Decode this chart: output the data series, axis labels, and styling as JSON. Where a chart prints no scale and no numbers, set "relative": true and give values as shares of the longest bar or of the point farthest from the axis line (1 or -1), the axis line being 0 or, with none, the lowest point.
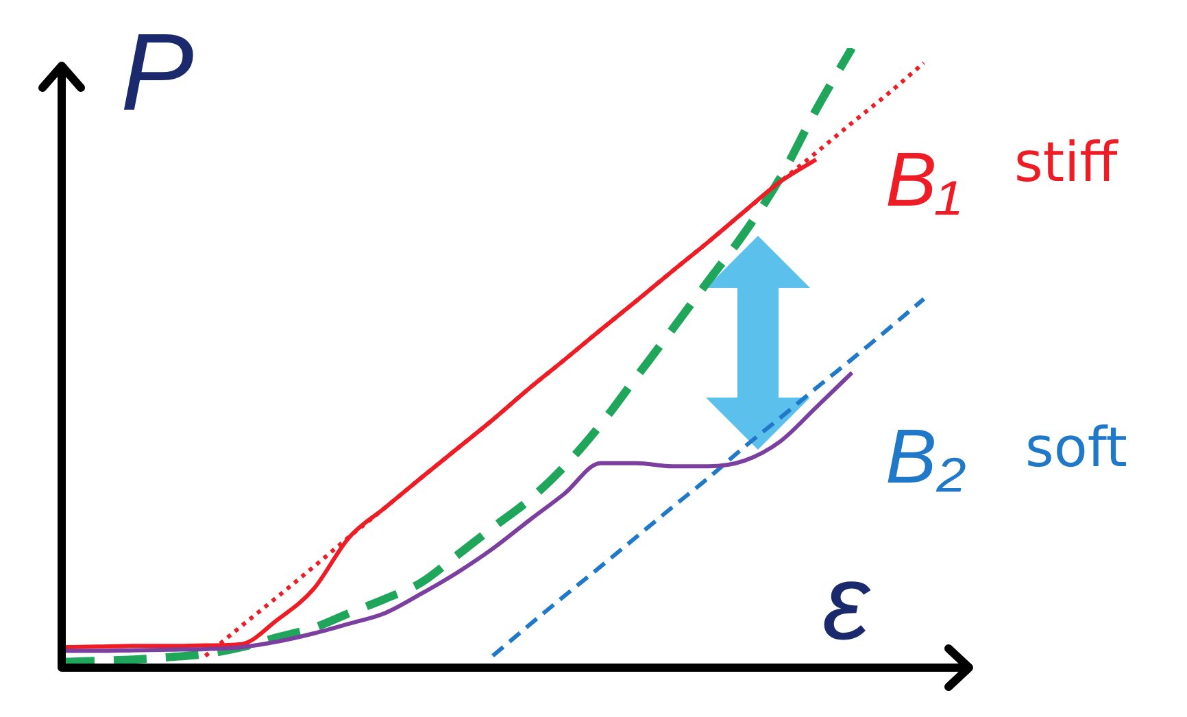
{
  "chart_data": {
    "type": "line",
    "relative": true,
    "xlabel": "ε",
    "ylabel": "P",
    "marker": "none",
    "categories": [
      null,
      null,
      null,
      null,
      null,
      null,
      null,
      null,
      null,
      null,
      null,
      null,
      null,
      null,
      null,
      null,
      null,
      null,
      null,
      null,
      null,
      null,
      null,
      null,
      null
    ],
    "annotations": [
      "stiff",
      "soft"
    ],
    "series": [
      {
        "color": "#7b3fa0",
        "line_style": "solid",
        "values": [
          0.027,
          0.027,
          0.028,
          0.029,
          0.03,
          0.033,
          0.042,
          0.055,
          0.071,
          0.088,
          0.119,
          0.153,
          0.192,
          0.237,
          0.281,
          0.33,
          0.33,
          0.325,
          0.325,
          0.334,
          0.365,
          0.42,
          0.476,
          null,
          null
        ]
      },
      {
        "color": "#ee1c24",
        "line_style": "solid",
        "values": [
          0.033,
          0.034,
          0.035,
          0.035,
          0.036,
          0.038,
          0.077,
          0.126,
          0.21,
          0.258,
          0.306,
          0.353,
          0.4,
          0.45,
          0.497,
          0.545,
          0.592,
          0.64,
          0.687,
          0.736,
          0.784,
          0.82,
          null,
          null,
          null
        ]
      },
      {
        "color": "#1fa65a",
        "line_style": "dashed",
        "values": [
          0.009,
          0.011,
          0.013,
          0.017,
          0.022,
          0.033,
          0.049,
          0.064,
          0.088,
          0.111,
          0.137,
          0.181,
          0.226,
          0.27,
          0.325,
          0.392,
          0.469,
          0.546,
          0.624,
          0.701,
          0.79,
          0.9,
          1.0,
          null,
          null
        ]
      },
      {
        "name": "B₁",
        "color": "#ee1c24",
        "line_style": "dotted",
        "values": [
          null,
          null,
          null,
          null,
          0.019,
          0.067,
          0.114,
          0.162,
          0.211,
          0.258,
          0.306,
          0.353,
          0.4,
          0.45,
          0.497,
          0.545,
          0.592,
          0.64,
          0.687,
          0.736,
          0.784,
          0.831,
          0.879,
          0.926,
          0.976
        ]
      },
      {
        "name": "B₂",
        "color": "#1f78c8",
        "line_style": "dashed",
        "values": [
          null,
          null,
          null,
          null,
          null,
          null,
          null,
          null,
          null,
          null,
          null,
          null,
          0.019,
          0.068,
          0.116,
          0.163,
          0.211,
          0.259,
          0.306,
          0.356,
          0.403,
          0.451,
          0.498,
          0.546,
          0.595
        ]
      }
    ]
  }
}
